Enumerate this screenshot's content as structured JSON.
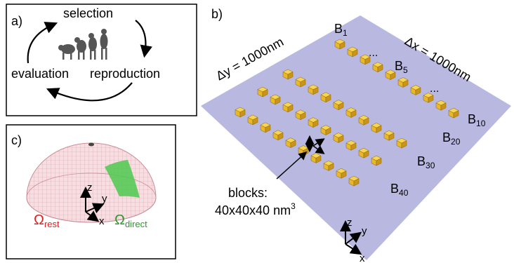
{
  "panel_a": {
    "label": "a)",
    "steps": {
      "selection": "selection",
      "reproduction": "reproduction",
      "evaluation": "evaluation"
    }
  },
  "panel_b": {
    "label": "b)",
    "dy": "Δy = 1000nm",
    "dx": "Δx = 1000nm",
    "block_labels": [
      {
        "base": "B",
        "sub": "1"
      },
      {
        "base": "B",
        "sub": "5"
      },
      {
        "base": "B",
        "sub": "10"
      },
      {
        "base": "B",
        "sub": "20"
      },
      {
        "base": "B",
        "sub": "30"
      },
      {
        "base": "B",
        "sub": "40"
      }
    ],
    "ellipsis": "...",
    "blocks_caption": "blocks:",
    "blocks_size": "40x40x40 nm",
    "blocks_size_exp": "3",
    "axes": {
      "x": "x",
      "y": "y",
      "z": "z"
    },
    "plane_color": "#b8b8e0",
    "block_color": "#e8b72a"
  },
  "panel_c": {
    "label": "c)",
    "omega_rest": {
      "symbol": "Ω",
      "sub": "rest",
      "color": "#e02020"
    },
    "omega_direct": {
      "symbol": "Ω",
      "sub": "direct",
      "color": "#2a9a2a"
    },
    "axes": {
      "x": "x",
      "y": "y",
      "z": "z"
    },
    "dome_color": "#e8b8c0",
    "patch_color": "#4ec94e"
  }
}
